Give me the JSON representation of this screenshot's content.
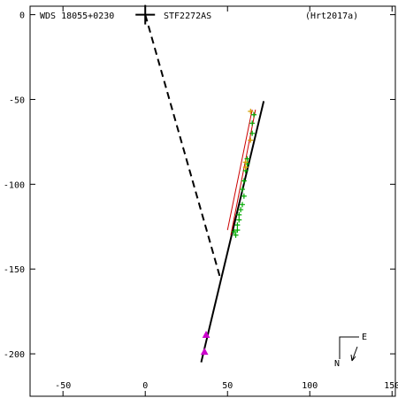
{
  "header": {
    "left": "WDS 18055+0230",
    "center": "STF2272AS",
    "right": "(Hrt2017a)"
  },
  "compass": {
    "north": "N",
    "east": "E"
  },
  "chart_data": {
    "type": "scatter",
    "xlim": [
      -70,
      152
    ],
    "ylim": [
      -225,
      5
    ],
    "x_ticks": [
      -50,
      0,
      50,
      100,
      150
    ],
    "y_ticks": [
      0,
      -50,
      -100,
      -150,
      -200
    ],
    "grid": false,
    "primary": {
      "x": 0,
      "y": 0,
      "color": "#000000"
    },
    "orbit_fit": {
      "color": "#000000",
      "points": [
        [
          34,
          -205
        ],
        [
          72,
          -51
        ]
      ]
    },
    "periastron_link": {
      "color": "#000000",
      "dash": true,
      "points": [
        [
          0,
          0
        ],
        [
          45.5,
          -155
        ]
      ]
    },
    "lines": [
      {
        "name": "",
        "color": "#cc0000",
        "points": [
          [
            52,
            -130
          ],
          [
            67,
            -56
          ]
        ]
      },
      {
        "name": "",
        "color": "#cc0000",
        "points": [
          [
            50,
            -127
          ],
          [
            65,
            -56
          ]
        ]
      }
    ],
    "series": [
      {
        "name": "",
        "color": "#00aa00",
        "marker": "plus",
        "points": [
          [
            66,
            -59
          ],
          [
            65,
            -64
          ],
          [
            65,
            -70
          ],
          [
            62,
            -85
          ],
          [
            62,
            -88
          ],
          [
            61,
            -92
          ],
          [
            60,
            -98
          ],
          [
            59,
            -103
          ],
          [
            60,
            -107
          ],
          [
            59,
            -112
          ],
          [
            58,
            -115
          ],
          [
            57,
            -118
          ],
          [
            57,
            -121
          ],
          [
            56,
            -124
          ],
          [
            56,
            -127
          ],
          [
            55,
            -130
          ],
          [
            54,
            -128
          ]
        ]
      },
      {
        "name": "",
        "color": "#d4a000",
        "marker": "plus",
        "points": [
          [
            64,
            -57
          ],
          [
            64,
            -74
          ],
          [
            61,
            -87
          ],
          [
            61,
            -90
          ]
        ]
      },
      {
        "name": "",
        "color": "#cc00cc",
        "marker": "triangle",
        "points": [
          [
            37,
            -189
          ],
          [
            36,
            -199
          ]
        ]
      }
    ]
  }
}
